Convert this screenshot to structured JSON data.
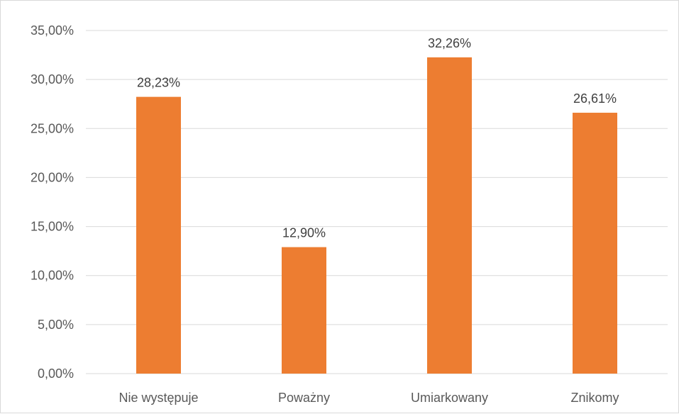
{
  "chart_data": {
    "type": "bar",
    "categories": [
      "Nie występuje",
      "Poważny",
      "Umiarkowany",
      "Znikomy"
    ],
    "values": [
      28.23,
      12.9,
      32.26,
      26.61
    ],
    "value_labels": [
      "28,23%",
      "12,90%",
      "32,26%",
      "26,61%"
    ],
    "ylim": [
      0,
      35
    ],
    "yticks": [
      0,
      5,
      10,
      15,
      20,
      25,
      30,
      35
    ],
    "ytick_labels": [
      "0,00%",
      "5,00%",
      "10,00%",
      "15,00%",
      "20,00%",
      "25,00%",
      "30,00%",
      "35,00%"
    ],
    "bar_color": "#ED7D31",
    "grid": true,
    "legend": "none",
    "title": "",
    "xlabel": "",
    "ylabel": ""
  }
}
